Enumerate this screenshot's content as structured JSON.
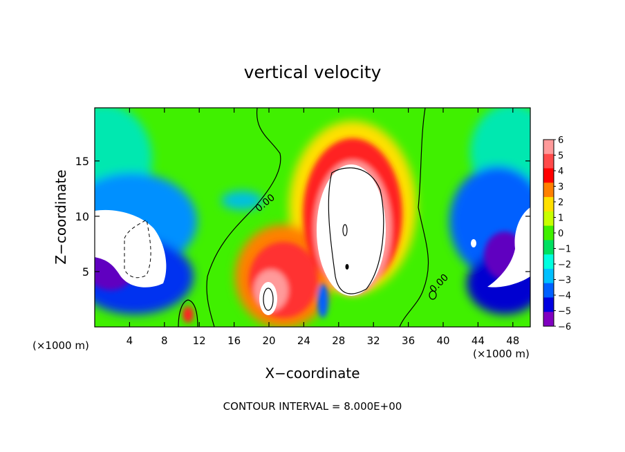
{
  "chart_data": {
    "type": "heatmap",
    "title": "vertical velocity",
    "xlabel": "X−coordinate",
    "ylabel": "Z−coordinate",
    "x_unit_left": "(×1000 m)",
    "x_unit_right": "(×1000 m)",
    "footer": "CONTOUR INTERVAL = 8.000E+00",
    "xlim": [
      0,
      50
    ],
    "ylim": [
      0,
      19.8
    ],
    "x_ticks": [
      4,
      8,
      12,
      16,
      20,
      24,
      28,
      32,
      36,
      40,
      44,
      48
    ],
    "x_tick_labels": [
      "4",
      "8",
      "12",
      "16",
      "20",
      "24",
      "28",
      "32",
      "36",
      "40",
      "44",
      "48"
    ],
    "y_ticks": [
      5,
      10,
      15
    ],
    "y_tick_labels": [
      "5",
      "10",
      "15"
    ],
    "contour_labels": [
      "0.00",
      "0.00"
    ],
    "colorbar": {
      "min": -6,
      "max": 6,
      "labels": [
        "6",
        "5",
        "4",
        "3",
        "2",
        "1",
        "0",
        "−1",
        "−2",
        "−3",
        "−4",
        "−5",
        "−6"
      ],
      "colors": [
        "#ff9a9a",
        "#ff4a4a",
        "#ff0000",
        "#ff8000",
        "#ffe000",
        "#c8ff00",
        "#40f000",
        "#00e060",
        "#00ffe0",
        "#00c0ff",
        "#0060ff",
        "#0000e0",
        "#8000c0"
      ]
    }
  }
}
